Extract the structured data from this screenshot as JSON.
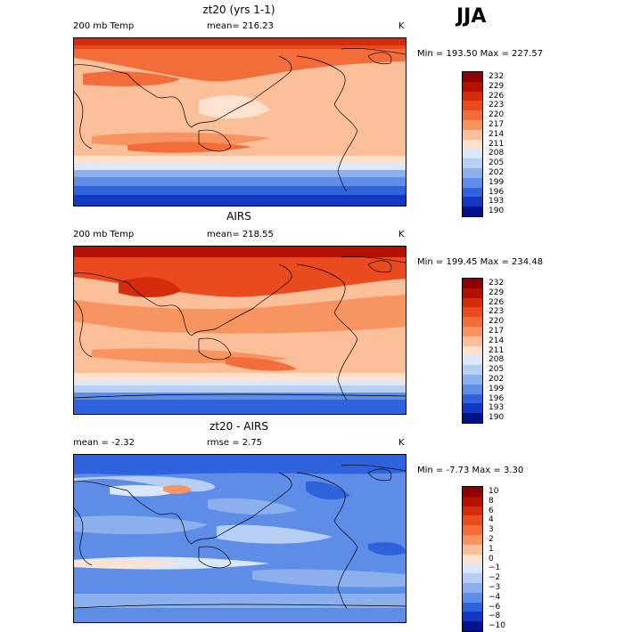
{
  "season": "JJA",
  "panels": [
    {
      "title": "zt20 (yrs 1-1)",
      "left_label": "200 mb Temp",
      "center_label": "mean=  216.23",
      "units": "K",
      "minmax": "Min = 193.50 Max = 227.57",
      "levels": [
        "232",
        "229",
        "226",
        "223",
        "220",
        "217",
        "214",
        "211",
        "208",
        "205",
        "202",
        "199",
        "196",
        "193",
        "190"
      ],
      "colors": [
        "#8b0000",
        "#b31000",
        "#d42b0b",
        "#e94a1e",
        "#f26d3a",
        "#f79460",
        "#fbbf9a",
        "#fde3cf",
        "#dbe8fb",
        "#b8cff5",
        "#8cb0ee",
        "#5d8de7",
        "#2f62dd",
        "#1238c4",
        "#00128a"
      ]
    },
    {
      "title": "AIRS",
      "left_label": "200 mb Temp",
      "center_label": "mean=  218.55",
      "units": "K",
      "minmax": "Min = 199.45 Max = 234.48",
      "levels": [
        "232",
        "229",
        "226",
        "223",
        "220",
        "217",
        "214",
        "211",
        "208",
        "205",
        "202",
        "199",
        "196",
        "193",
        "190"
      ],
      "colors": [
        "#8b0000",
        "#b31000",
        "#d42b0b",
        "#e94a1e",
        "#f26d3a",
        "#f79460",
        "#fbbf9a",
        "#fde3cf",
        "#dbe8fb",
        "#b8cff5",
        "#8cb0ee",
        "#5d8de7",
        "#2f62dd",
        "#1238c4",
        "#00128a"
      ]
    },
    {
      "title": "zt20 - AIRS",
      "left_label": "mean =   -2.32",
      "center_label": "rmse =    2.75",
      "units": "K",
      "minmax": "Min =  -7.73 Max =    3.30",
      "levels": [
        "10",
        "8",
        "6",
        "4",
        "3",
        "2",
        "1",
        "0",
        "−1",
        "−2",
        "−3",
        "−4",
        "−6",
        "−8",
        "−10"
      ],
      "colors": [
        "#8b0000",
        "#b31000",
        "#d42b0b",
        "#e94a1e",
        "#f26d3a",
        "#f79460",
        "#fbbf9a",
        "#fde3cf",
        "#dbe8fb",
        "#b8cff5",
        "#8cb0ee",
        "#5d8de7",
        "#2f62dd",
        "#1238c4",
        "#00128a"
      ]
    }
  ]
}
